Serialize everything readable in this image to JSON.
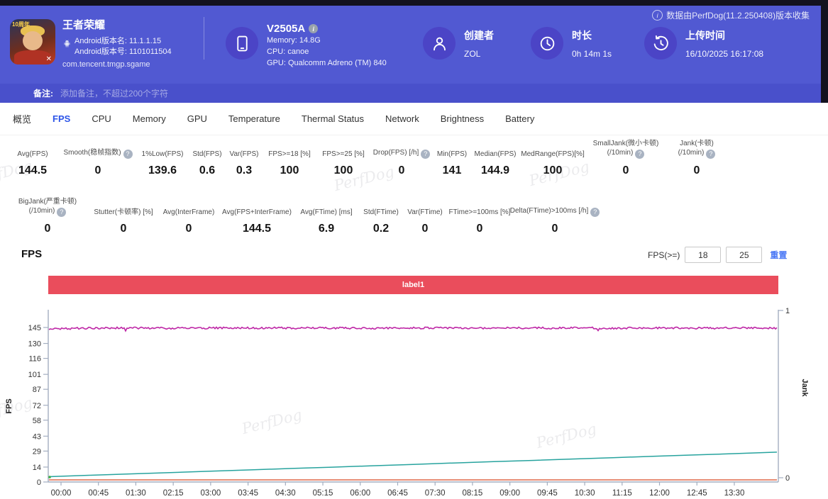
{
  "header": {
    "game": {
      "name": "王者荣耀",
      "icon_badge": "10周年",
      "android_version_name": "Android版本名: 11.1.1.15",
      "android_version_code": "Android版本号: 1101011504",
      "package": "com.tencent.tmgp.sgame"
    },
    "device": {
      "model": "V2505A",
      "memory": "Memory: 14.8G",
      "cpu": "CPU: canoe",
      "gpu": "GPU: Qualcomm Adreno (TM) 840"
    },
    "creator": {
      "label": "创建者",
      "value": "ZOL"
    },
    "duration": {
      "label": "时长",
      "value": "0h 14m 1s"
    },
    "upload_time": {
      "label": "上传时间",
      "value": "16/10/2025 16:17:08"
    },
    "collector_note": "数据由PerfDog(11.2.250408)版本收集"
  },
  "note_bar": {
    "label": "备注:",
    "placeholder": "添加备注，不超过200个字符"
  },
  "tabs": [
    {
      "label": "概览",
      "active": false
    },
    {
      "label": "FPS",
      "active": true
    },
    {
      "label": "CPU",
      "active": false
    },
    {
      "label": "Memory",
      "active": false
    },
    {
      "label": "GPU",
      "active": false
    },
    {
      "label": "Temperature",
      "active": false
    },
    {
      "label": "Thermal Status",
      "active": false
    },
    {
      "label": "Network",
      "active": false
    },
    {
      "label": "Brightness",
      "active": false
    },
    {
      "label": "Battery",
      "active": false
    }
  ],
  "stats_row1": [
    {
      "label": "Avg(FPS)",
      "value": "144.5"
    },
    {
      "label": "Smooth(稳帧指数)",
      "help": true,
      "value": "0"
    },
    {
      "label": "1%Low(FPS)",
      "value": "139.6"
    },
    {
      "label": "Std(FPS)",
      "value": "0.6"
    },
    {
      "label": "Var(FPS)",
      "value": "0.3"
    },
    {
      "label": "FPS>=18 [%]",
      "value": "100"
    },
    {
      "label": "FPS>=25 [%]",
      "value": "100"
    },
    {
      "label": "Drop(FPS) [/h]",
      "help": true,
      "value": "0"
    },
    {
      "label": "Min(FPS)",
      "value": "141"
    },
    {
      "label": "Median(FPS)",
      "value": "144.9"
    },
    {
      "label": "MedRange(FPS)[%]",
      "value": "100"
    },
    {
      "label": "SmallJank(微小卡顿)",
      "label2": "(/10min)",
      "help": true,
      "value": "0"
    },
    {
      "label": "Jank(卡顿)",
      "label2": "(/10min)",
      "help": true,
      "value": "0"
    }
  ],
  "stats_row2": [
    {
      "label": "BigJank(严重卡顿)",
      "label2": "(/10min)",
      "help": true,
      "value": "0"
    },
    {
      "label": "Stutter(卡顿率) [%]",
      "value": "0"
    },
    {
      "label": "Avg(InterFrame)",
      "value": "0"
    },
    {
      "label": "Avg(FPS+InterFrame)",
      "value": "144.5"
    },
    {
      "label": "Avg(FTime) [ms]",
      "value": "6.9"
    },
    {
      "label": "Std(FTime)",
      "value": "0.2"
    },
    {
      "label": "Var(FTime)",
      "value": "0"
    },
    {
      "label": "FTime>=100ms [%]",
      "value": "0"
    },
    {
      "label": "Delta(FTime)>100ms [/h]",
      "help": true,
      "value": "0"
    }
  ],
  "fps_section": {
    "title": "FPS",
    "filter_label": "FPS(>=)",
    "threshold_low": "18",
    "threshold_high": "25",
    "reset_label": "重置",
    "region_label": "label1"
  },
  "watermark": "PerfDog",
  "colors": {
    "header_bg": "#5159d2",
    "active_tab": "#2d55e8",
    "region_label_bg": "#ea4d5c",
    "link_blue": "#4977f5",
    "fps_line": "#be27a6",
    "teal_line": "#27a39e",
    "orange_line": "#e0694a"
  },
  "chart_data": {
    "type": "line",
    "title": "FPS",
    "x_labels": [
      "00:00",
      "00:45",
      "01:30",
      "02:15",
      "03:00",
      "03:45",
      "04:30",
      "05:15",
      "06:00",
      "06:45",
      "07:30",
      "08:15",
      "09:00",
      "09:45",
      "10:30",
      "11:15",
      "12:00",
      "12:45",
      "13:30"
    ],
    "y_left": {
      "label": "FPS",
      "ticks": [
        0,
        14,
        29,
        43,
        58,
        72,
        87,
        101,
        116,
        130,
        145
      ],
      "max": 145
    },
    "y_right": {
      "label": "Jank",
      "ticks": [
        0,
        1
      ]
    },
    "grid": false,
    "legend": "none",
    "region_label": "label1",
    "series": [
      {
        "name": "fps-line",
        "color": "#be27a6",
        "style": "noisy",
        "values": [
          143.5,
          144.4,
          144.6,
          144.3,
          144.5,
          144.6,
          144.4,
          144.5,
          144.3,
          144.6,
          144.5,
          144.4,
          144.6,
          144.5,
          144.3,
          144.6,
          144.4,
          144.5,
          144.5
        ]
      },
      {
        "name": "secondary-rising-teal",
        "color": "#27a39e",
        "style": "smooth",
        "values": [
          5.0,
          6.3,
          7.6,
          8.8,
          10.1,
          11.4,
          12.7,
          13.9,
          15.2,
          16.5,
          17.8,
          19.1,
          20.3,
          21.6,
          22.9,
          24.2,
          25.4,
          26.7,
          28.0
        ]
      },
      {
        "name": "secondary-flat-orange",
        "color": "#e0694a",
        "style": "smooth",
        "values": [
          2,
          2,
          2,
          2,
          2,
          2,
          2,
          2,
          2,
          2,
          2,
          2,
          2,
          2,
          2,
          2,
          2,
          2,
          2
        ]
      }
    ],
    "start_marker": {
      "color": "#3fae49",
      "at": "00:00",
      "value": 4.6
    }
  }
}
